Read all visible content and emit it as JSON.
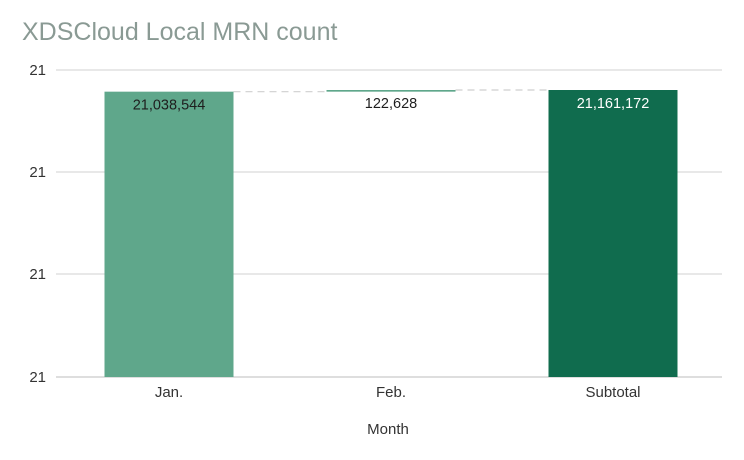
{
  "chart_data": {
    "type": "bar",
    "subtype": "waterfall",
    "title": "XDSCloud Local MRN count",
    "xlabel": "Month",
    "ylabel": "",
    "categories": [
      "Jan.",
      "Feb.",
      "Subtotal"
    ],
    "series": [
      {
        "values": [
          21038544,
          122628,
          21161172
        ],
        "bar_kinds": [
          "increase",
          "increase",
          "total"
        ],
        "data_labels": [
          "21,038,544",
          "122,628",
          "21,161,172"
        ]
      }
    ],
    "y_tick_labels": [
      "21",
      "21",
      "21",
      "21"
    ],
    "legend": "none",
    "grid": true,
    "connector_lines": true,
    "colors": {
      "increase": "#5fa78b",
      "total": "#106c4e",
      "gridline": "#d0d0d0",
      "connector": "#cfcfcf",
      "title": "#8a9a94",
      "text": "#333333"
    }
  }
}
